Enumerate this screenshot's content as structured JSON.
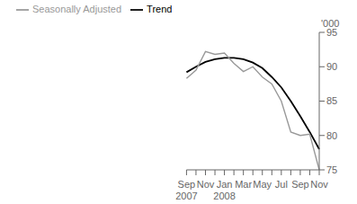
{
  "chart_data": {
    "type": "line",
    "ylabel": "'000",
    "categories": [
      "Sep\n2007",
      null,
      "Nov",
      null,
      "Jan\n2008",
      null,
      "Mar",
      null,
      "May",
      null,
      "Jul",
      null,
      "Sep",
      null,
      "Nov"
    ],
    "series": [
      {
        "name": "Trend",
        "color": "#000000",
        "values": [
          89.2,
          90.0,
          90.7,
          91.1,
          91.3,
          91.3,
          91.1,
          90.6,
          89.8,
          88.5,
          87.0,
          85.0,
          82.8,
          80.5,
          78.0
        ]
      },
      {
        "name": "Seasonally Adjusted",
        "color": "#999999",
        "values": [
          88.3,
          89.5,
          92.2,
          91.8,
          92.0,
          90.5,
          89.3,
          90.0,
          88.5,
          87.5,
          85.0,
          80.5,
          80.0,
          80.2,
          75.0
        ]
      }
    ],
    "ylim": [
      75,
      95
    ],
    "yticks": [
      75,
      80,
      85,
      90,
      95
    ],
    "grid": false,
    "legend": "upper left"
  }
}
